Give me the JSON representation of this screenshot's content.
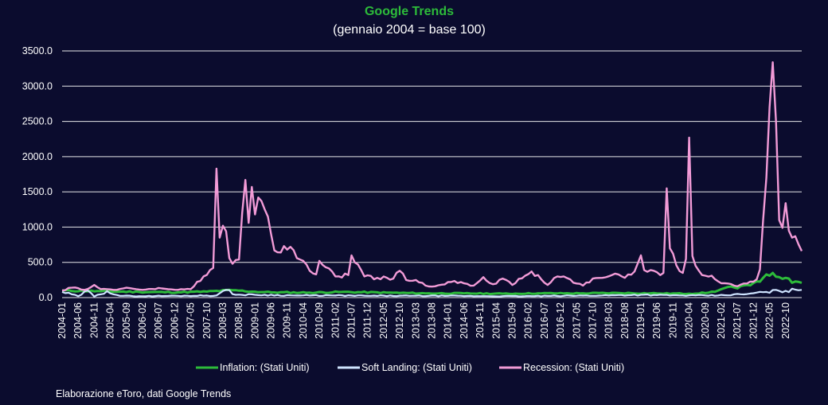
{
  "chart_data": {
    "type": "line",
    "title": "Google Trends",
    "subtitle": "(gennaio 2004 = base 100)",
    "xlabel": "",
    "ylabel": "",
    "ylim": [
      0,
      3500
    ],
    "yticks": [
      "0.0",
      "500.0",
      "1000.0",
      "1500.0",
      "2000.0",
      "2500.0",
      "3000.0",
      "3500.0"
    ],
    "x_start": "2004-01",
    "x_end": "2023-03",
    "x_tick_labels": [
      "2004-01",
      "2004-06",
      "2004-11",
      "2005-04",
      "2005-09",
      "2006-02",
      "2006-07",
      "2006-12",
      "2007-05",
      "2007-10",
      "2008-03",
      "2008-08",
      "2009-01",
      "2009-06",
      "2009-11",
      "2010-04",
      "2010-09",
      "2011-02",
      "2011-07",
      "2011-12",
      "2012-05",
      "2012-10",
      "2013-03",
      "2013-08",
      "2014-01",
      "2014-06",
      "2014-11",
      "2015-04",
      "2015-09",
      "2016-02",
      "2016-07",
      "2016-12",
      "2017-05",
      "2017-10",
      "2018-03",
      "2018-08",
      "2019-01",
      "2019-06",
      "2019-11",
      "2020-04",
      "2020-09",
      "2021-02",
      "2021-07",
      "2021-12",
      "2022-05",
      "2022-10"
    ],
    "grid": true,
    "legend_position": "bottom",
    "colors": {
      "background": "#0b0c2e",
      "title": "#2dbb3a",
      "inflation": "#2dbb3a",
      "soft_landing": "#cfe4ff",
      "recession": "#f29bd7",
      "grid": "#ffffff"
    },
    "series": [
      {
        "name": "Inflation: (Stati Uniti)",
        "anchors": [
          [
            "2004-01",
            100
          ],
          [
            "2005-01",
            90
          ],
          [
            "2006-01",
            80
          ],
          [
            "2007-01",
            75
          ],
          [
            "2007-10",
            85
          ],
          [
            "2008-06",
            105
          ],
          [
            "2008-12",
            85
          ],
          [
            "2009-06",
            75
          ],
          [
            "2010-06",
            70
          ],
          [
            "2011-04",
            80
          ],
          [
            "2012-06",
            70
          ],
          [
            "2013-06",
            60
          ],
          [
            "2014-06",
            60
          ],
          [
            "2015-06",
            55
          ],
          [
            "2016-06",
            60
          ],
          [
            "2017-06",
            60
          ],
          [
            "2018-06",
            65
          ],
          [
            "2019-06",
            60
          ],
          [
            "2020-04",
            55
          ],
          [
            "2020-10",
            70
          ],
          [
            "2021-01",
            100
          ],
          [
            "2021-04",
            150
          ],
          [
            "2021-07",
            130
          ],
          [
            "2021-10",
            180
          ],
          [
            "2022-01",
            230
          ],
          [
            "2022-03",
            280
          ],
          [
            "2022-05",
            310
          ],
          [
            "2022-06",
            350
          ],
          [
            "2022-08",
            290
          ],
          [
            "2022-10",
            280
          ],
          [
            "2022-12",
            210
          ],
          [
            "2023-03",
            210
          ]
        ]
      },
      {
        "name": "Soft Landing: (Stati Uniti)",
        "anchors": [
          [
            "2004-01",
            80
          ],
          [
            "2004-06",
            20
          ],
          [
            "2004-09",
            100
          ],
          [
            "2004-11",
            15
          ],
          [
            "2005-03",
            90
          ],
          [
            "2005-07",
            25
          ],
          [
            "2006-01",
            20
          ],
          [
            "2007-01",
            25
          ],
          [
            "2008-01",
            30
          ],
          [
            "2008-04",
            110
          ],
          [
            "2008-07",
            40
          ],
          [
            "2009-01",
            40
          ],
          [
            "2010-01",
            30
          ],
          [
            "2011-01",
            30
          ],
          [
            "2012-01",
            25
          ],
          [
            "2013-01",
            25
          ],
          [
            "2014-01",
            25
          ],
          [
            "2015-01",
            20
          ],
          [
            "2016-01",
            20
          ],
          [
            "2017-01",
            25
          ],
          [
            "2018-01",
            30
          ],
          [
            "2019-01",
            40
          ],
          [
            "2019-06",
            35
          ],
          [
            "2020-01",
            30
          ],
          [
            "2021-01",
            30
          ],
          [
            "2021-10",
            50
          ],
          [
            "2022-04",
            80
          ],
          [
            "2022-08",
            95
          ],
          [
            "2023-03",
            110
          ]
        ]
      },
      {
        "name": "Recession: (Stati Uniti)",
        "anchors": [
          [
            "2004-01",
            100
          ],
          [
            "2004-04",
            140
          ],
          [
            "2004-08",
            110
          ],
          [
            "2004-11",
            180
          ],
          [
            "2005-01",
            120
          ],
          [
            "2005-06",
            110
          ],
          [
            "2005-09",
            140
          ],
          [
            "2006-02",
            110
          ],
          [
            "2006-08",
            130
          ],
          [
            "2007-01",
            110
          ],
          [
            "2007-05",
            120
          ],
          [
            "2007-09",
            300
          ],
          [
            "2007-12",
            420
          ],
          [
            "2008-01",
            1830
          ],
          [
            "2008-02",
            850
          ],
          [
            "2008-03",
            1020
          ],
          [
            "2008-04",
            940
          ],
          [
            "2008-05",
            560
          ],
          [
            "2008-06",
            480
          ],
          [
            "2008-08",
            540
          ],
          [
            "2008-09",
            1200
          ],
          [
            "2008-10",
            1670
          ],
          [
            "2008-11",
            1060
          ],
          [
            "2008-12",
            1570
          ],
          [
            "2009-01",
            1180
          ],
          [
            "2009-02",
            1420
          ],
          [
            "2009-03",
            1370
          ],
          [
            "2009-04",
            1250
          ],
          [
            "2009-06",
            900
          ],
          [
            "2009-07",
            670
          ],
          [
            "2009-09",
            640
          ],
          [
            "2009-10",
            730
          ],
          [
            "2009-12",
            720
          ],
          [
            "2010-02",
            560
          ],
          [
            "2010-04",
            520
          ],
          [
            "2010-06",
            380
          ],
          [
            "2010-08",
            330
          ],
          [
            "2010-09",
            520
          ],
          [
            "2010-11",
            430
          ],
          [
            "2011-02",
            300
          ],
          [
            "2011-06",
            320
          ],
          [
            "2011-07",
            600
          ],
          [
            "2011-09",
            470
          ],
          [
            "2011-11",
            300
          ],
          [
            "2012-03",
            280
          ],
          [
            "2012-08",
            270
          ],
          [
            "2012-10",
            380
          ],
          [
            "2012-12",
            250
          ],
          [
            "2013-03",
            250
          ],
          [
            "2013-06",
            170
          ],
          [
            "2013-09",
            160
          ],
          [
            "2014-01",
            220
          ],
          [
            "2014-05",
            220
          ],
          [
            "2014-09",
            170
          ],
          [
            "2014-12",
            290
          ],
          [
            "2015-03",
            190
          ],
          [
            "2015-06",
            270
          ],
          [
            "2015-09",
            180
          ],
          [
            "2016-01",
            310
          ],
          [
            "2016-03",
            370
          ],
          [
            "2016-06",
            260
          ],
          [
            "2016-08",
            180
          ],
          [
            "2016-11",
            300
          ],
          [
            "2017-01",
            300
          ],
          [
            "2017-05",
            200
          ],
          [
            "2017-07",
            170
          ],
          [
            "2017-10",
            270
          ],
          [
            "2018-01",
            280
          ],
          [
            "2018-05",
            340
          ],
          [
            "2018-08",
            280
          ],
          [
            "2018-11",
            370
          ],
          [
            "2019-01",
            600
          ],
          [
            "2019-02",
            390
          ],
          [
            "2019-05",
            380
          ],
          [
            "2019-07",
            320
          ],
          [
            "2019-08",
            350
          ],
          [
            "2019-09",
            1550
          ],
          [
            "2019-10",
            700
          ],
          [
            "2019-12",
            460
          ],
          [
            "2020-02",
            350
          ],
          [
            "2020-03",
            550
          ],
          [
            "2020-04",
            2270
          ],
          [
            "2020-05",
            590
          ],
          [
            "2020-06",
            450
          ],
          [
            "2020-08",
            320
          ],
          [
            "2020-11",
            310
          ],
          [
            "2021-01",
            230
          ],
          [
            "2021-04",
            200
          ],
          [
            "2021-07",
            160
          ],
          [
            "2021-10",
            200
          ],
          [
            "2022-01",
            260
          ],
          [
            "2022-02",
            400
          ],
          [
            "2022-03",
            1100
          ],
          [
            "2022-04",
            1700
          ],
          [
            "2022-05",
            2700
          ],
          [
            "2022-06",
            3340
          ],
          [
            "2022-07",
            2500
          ],
          [
            "2022-08",
            1100
          ],
          [
            "2022-09",
            990
          ],
          [
            "2022-10",
            1340
          ],
          [
            "2022-11",
            950
          ],
          [
            "2022-12",
            850
          ],
          [
            "2023-01",
            870
          ],
          [
            "2023-03",
            660
          ]
        ]
      }
    ]
  },
  "source_note": "Elaborazione eToro, dati Google Trends"
}
